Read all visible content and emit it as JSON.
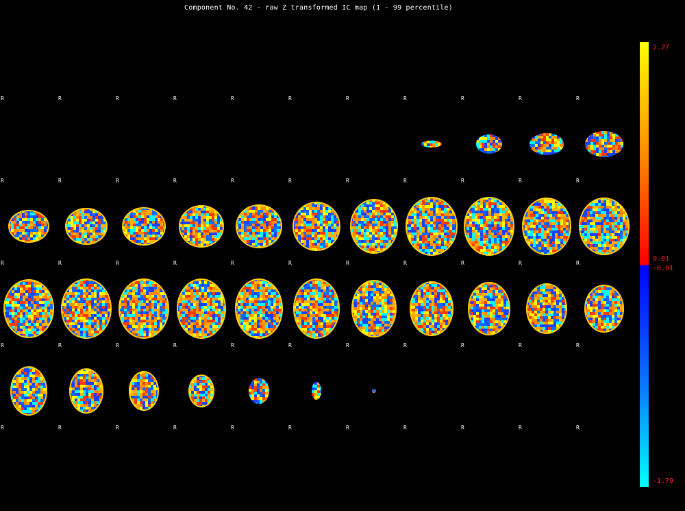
{
  "title": "Component No. 42 - raw Z transformed IC map (1 - 99 percentile)",
  "orientation_label": "R",
  "colorbar": {
    "max": "2.27",
    "pos_min": "0.01",
    "neg_max": "-0.01",
    "min": "-1.79"
  },
  "colors": {
    "background": "#000000",
    "yellow": "#ffff00",
    "orange": "#ff8c00",
    "red": "#ff0000",
    "blue": "#0000ff",
    "light_blue": "#00ffff",
    "label_red": "#ff2020"
  },
  "mosaic": {
    "rows": 5,
    "cols": 11,
    "slice_count": 55
  }
}
